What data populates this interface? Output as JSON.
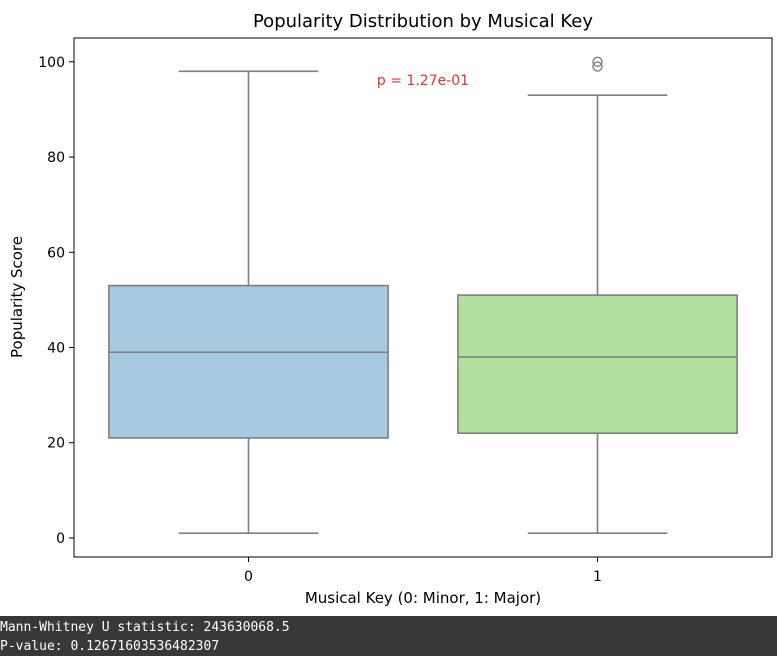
{
  "chart_data": {
    "type": "box",
    "title": "Popularity Distribution by Musical Key",
    "xlabel": "Musical Key (0: Minor, 1: Major)",
    "ylabel": "Popularity Score",
    "ylim": [
      -4,
      105
    ],
    "yticks": [
      0,
      20,
      40,
      60,
      80,
      100
    ],
    "grid": false,
    "annotation": "p = 1.27e-01",
    "annotation_color": "#e8322a",
    "categories": [
      "0",
      "1"
    ],
    "boxes": [
      {
        "category": "0",
        "whisker_low": 1,
        "q1": 21,
        "median": 39,
        "q3": 53,
        "whisker_high": 98,
        "outliers": [],
        "color": "#a6cae0"
      },
      {
        "category": "1",
        "whisker_low": 1,
        "q1": 22,
        "median": 38,
        "q3": 51,
        "whisker_high": 93,
        "outliers": [
          99,
          100
        ],
        "color": "#b2e19f"
      }
    ]
  },
  "output": {
    "lines": [
      "Mann-Whitney U statistic: 243630068.5",
      "P-value: 0.12671603536482307"
    ]
  }
}
